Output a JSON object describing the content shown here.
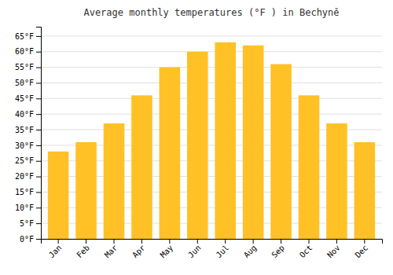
{
  "chart_data": {
    "type": "bar",
    "title": "Average monthly temperatures (°F ) in Bechyně",
    "categories": [
      "Jan",
      "Feb",
      "Mar",
      "Apr",
      "May",
      "Jun",
      "Jul",
      "Aug",
      "Sep",
      "Oct",
      "Nov",
      "Dec"
    ],
    "values": [
      28,
      31,
      37,
      46,
      55,
      60,
      63,
      62,
      56,
      46,
      37,
      31
    ],
    "color": "#FFC125",
    "ylim": [
      0,
      68
    ],
    "yticks": [
      {
        "value": 0,
        "label": "0°F"
      },
      {
        "value": 5,
        "label": "5°F"
      },
      {
        "value": 10,
        "label": "10°F"
      },
      {
        "value": 15,
        "label": "15°F"
      },
      {
        "value": 20,
        "label": "20°F"
      },
      {
        "value": 25,
        "label": "25°F"
      },
      {
        "value": 30,
        "label": "30°F"
      },
      {
        "value": 35,
        "label": "35°F"
      },
      {
        "value": 40,
        "label": "40°F"
      },
      {
        "value": 45,
        "label": "45°F"
      },
      {
        "value": 50,
        "label": "50°F"
      },
      {
        "value": 55,
        "label": "55°F"
      },
      {
        "value": 60,
        "label": "60°F"
      },
      {
        "value": 65,
        "label": "65°F"
      }
    ],
    "grid": true
  }
}
